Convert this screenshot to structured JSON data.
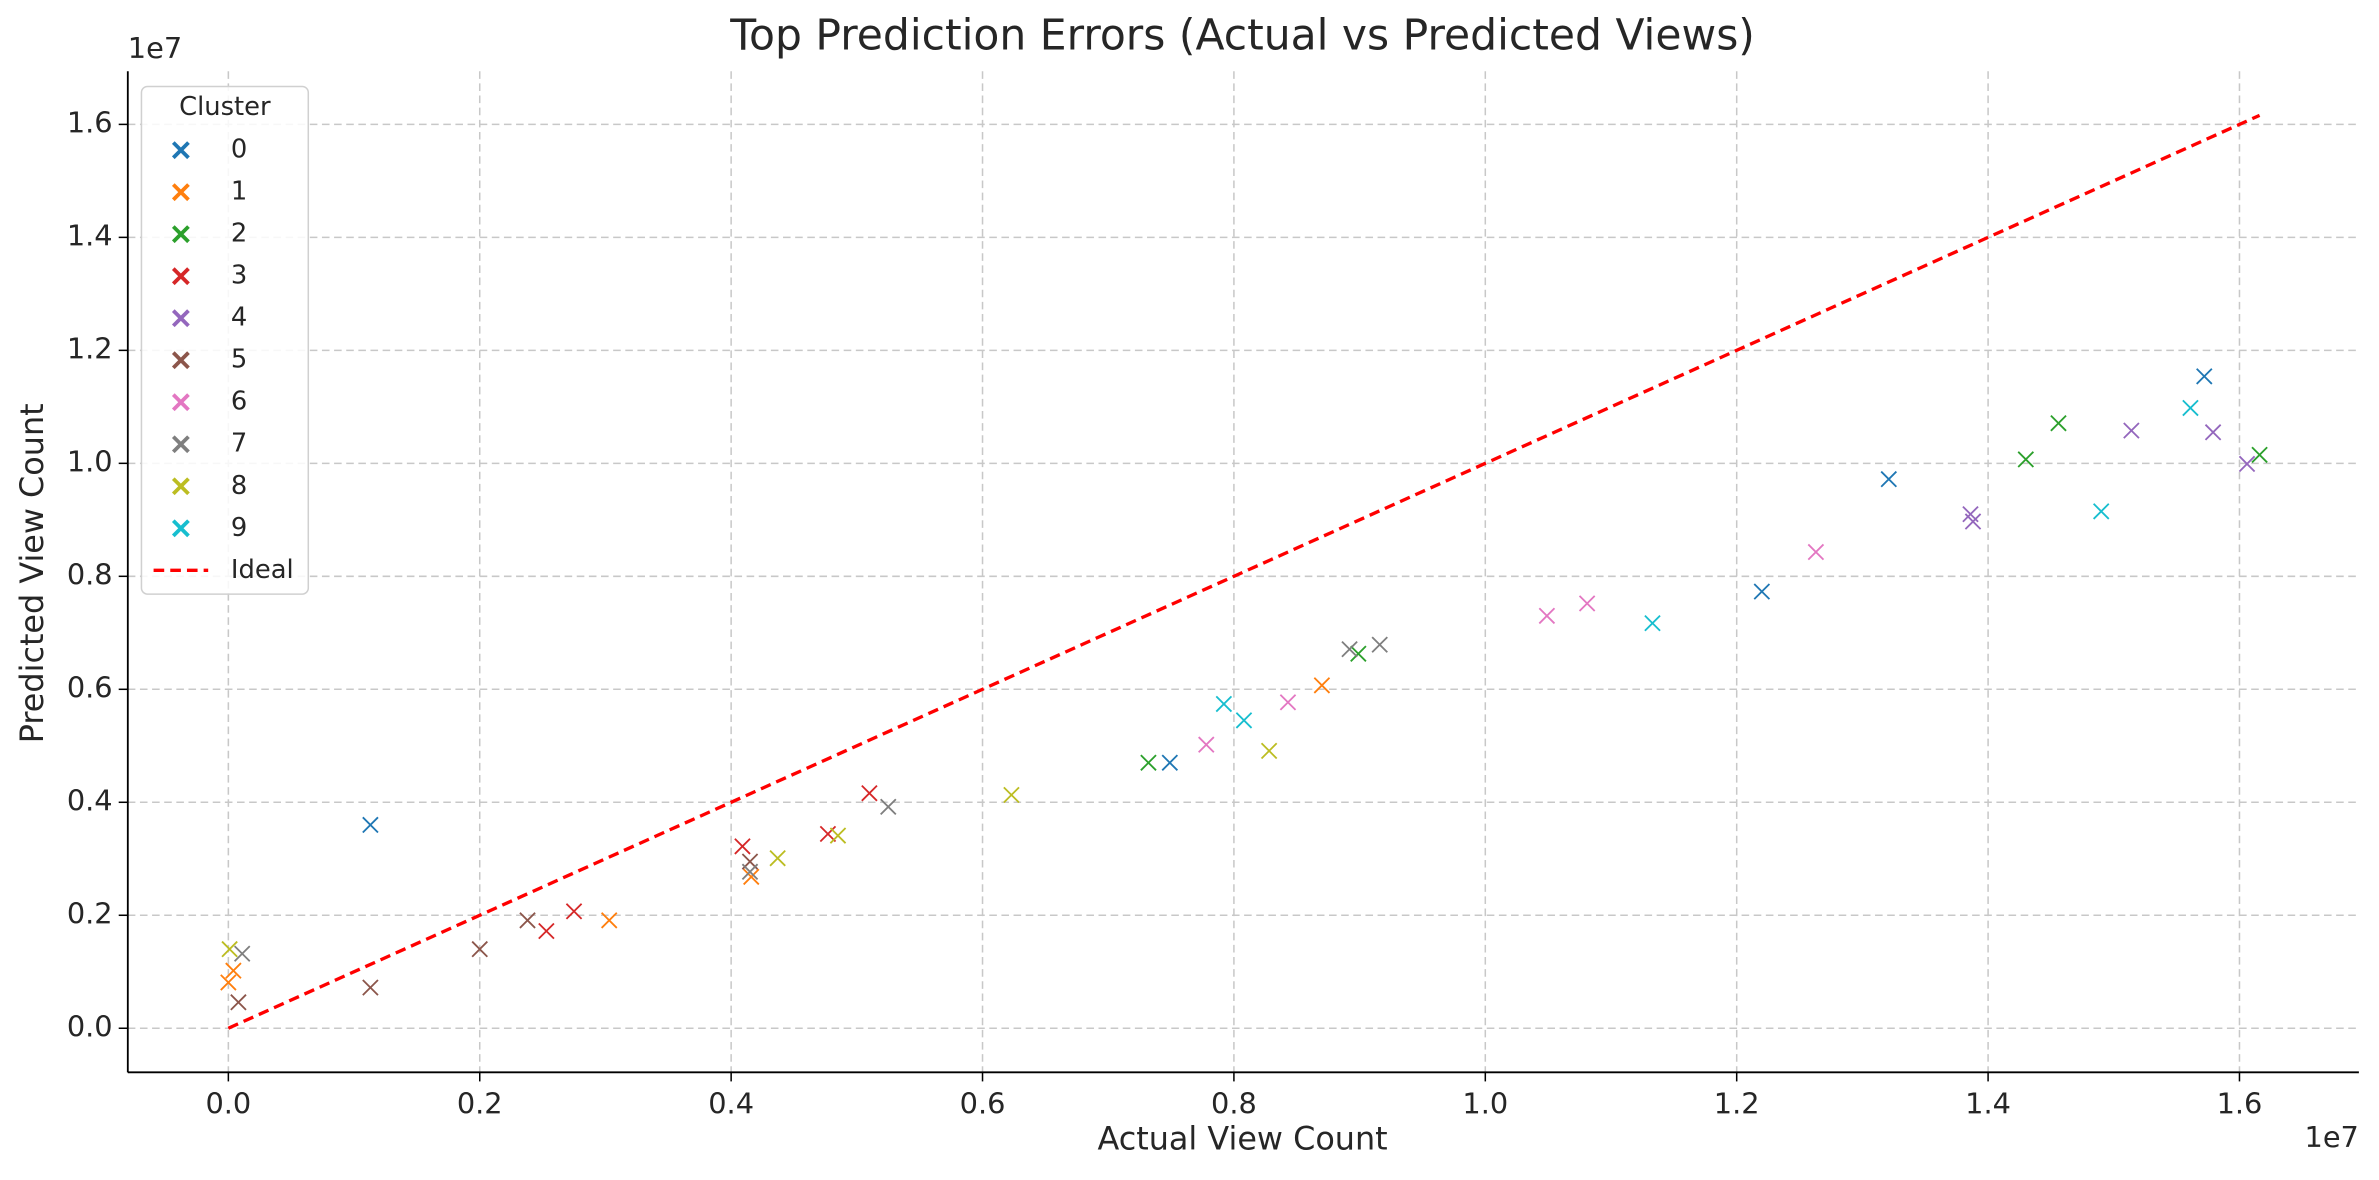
{
  "chart_data": {
    "type": "scatter",
    "title": "Top Prediction Errors (Actual vs Predicted Views)",
    "xlabel": "Actual View Count",
    "ylabel": "Predicted View Count",
    "x_offset_label": "1e7",
    "y_offset_label": "1e7",
    "xlim": [
      -0.08,
      1.695
    ],
    "ylim": [
      -0.078,
      1.694
    ],
    "xticks": [
      {
        "value": 0,
        "label": "0.0"
      },
      0.2,
      0.4,
      0.6,
      0.8,
      {
        "value": 1,
        "label": "1.0"
      },
      1.2,
      1.4,
      1.6
    ],
    "yticks": [
      {
        "value": 0,
        "label": "0.0"
      },
      0.2,
      0.4,
      0.6,
      0.8,
      {
        "value": 1,
        "label": "1.0"
      },
      1.2,
      1.4,
      1.6
    ],
    "grid": true,
    "legend_title": "Cluster",
    "legend": "upper left",
    "series": [
      {
        "name": "0",
        "color": "#1f77b4",
        "marker": "x",
        "x": [
          0.113,
          0.749,
          1.22,
          1.321,
          1.572
        ],
        "values": [
          0.36,
          0.47,
          0.773,
          0.972,
          1.154
        ]
      },
      {
        "name": "1",
        "color": "#ff7f0e",
        "marker": "x",
        "x": [
          0,
          0.004,
          0.416,
          0.303,
          0.87
        ],
        "values": [
          0.081,
          0.102,
          0.268,
          0.191,
          0.607
        ]
      },
      {
        "name": "2",
        "color": "#2ca02c",
        "marker": "x",
        "x": [
          0.732,
          0.899,
          1.43,
          1.456,
          1.616
        ],
        "values": [
          0.47,
          0.663,
          1.007,
          1.071,
          1.015
        ]
      },
      {
        "name": "3",
        "color": "#d62728",
        "marker": "x",
        "x": [
          0.409,
          0.477,
          0.51,
          0.275,
          0.253
        ],
        "values": [
          0.322,
          0.344,
          0.416,
          0.207,
          0.172
        ]
      },
      {
        "name": "4",
        "color": "#9467bd",
        "marker": "x",
        "x": [
          1.386,
          1.388,
          1.514,
          1.579,
          1.606
        ],
        "values": [
          0.91,
          0.897,
          1.058,
          1.055,
          0.999
        ]
      },
      {
        "name": "5",
        "color": "#8c564b",
        "marker": "x",
        "x": [
          0.008,
          0.113,
          0.2,
          0.238,
          0.415
        ],
        "values": [
          0.046,
          0.072,
          0.14,
          0.191,
          0.295
        ]
      },
      {
        "name": "6",
        "color": "#e377c2",
        "marker": "x",
        "x": [
          0.778,
          0.843,
          1.049,
          1.081,
          1.263
        ],
        "values": [
          0.502,
          0.577,
          0.73,
          0.752,
          0.843
        ]
      },
      {
        "name": "7",
        "color": "#7f7f7f",
        "marker": "x",
        "x": [
          0.011,
          0.415,
          0.525,
          0.892,
          0.916
        ],
        "values": [
          0.132,
          0.277,
          0.392,
          0.671,
          0.679
        ]
      },
      {
        "name": "8",
        "color": "#bcbd22",
        "marker": "x",
        "x": [
          0.001,
          0.437,
          0.485,
          0.623,
          0.828
        ],
        "values": [
          0.14,
          0.301,
          0.341,
          0.413,
          0.491
        ]
      },
      {
        "name": "9",
        "color": "#17becf",
        "marker": "x",
        "x": [
          0.792,
          0.808,
          1.133,
          1.49,
          1.561
        ],
        "values": [
          0.574,
          0.545,
          0.717,
          0.915,
          1.098
        ]
      },
      {
        "name": "Ideal",
        "color": "#ff0000",
        "line": "dashed",
        "x": [
          0,
          1.616
        ],
        "values": [
          0,
          1.616
        ]
      }
    ]
  }
}
